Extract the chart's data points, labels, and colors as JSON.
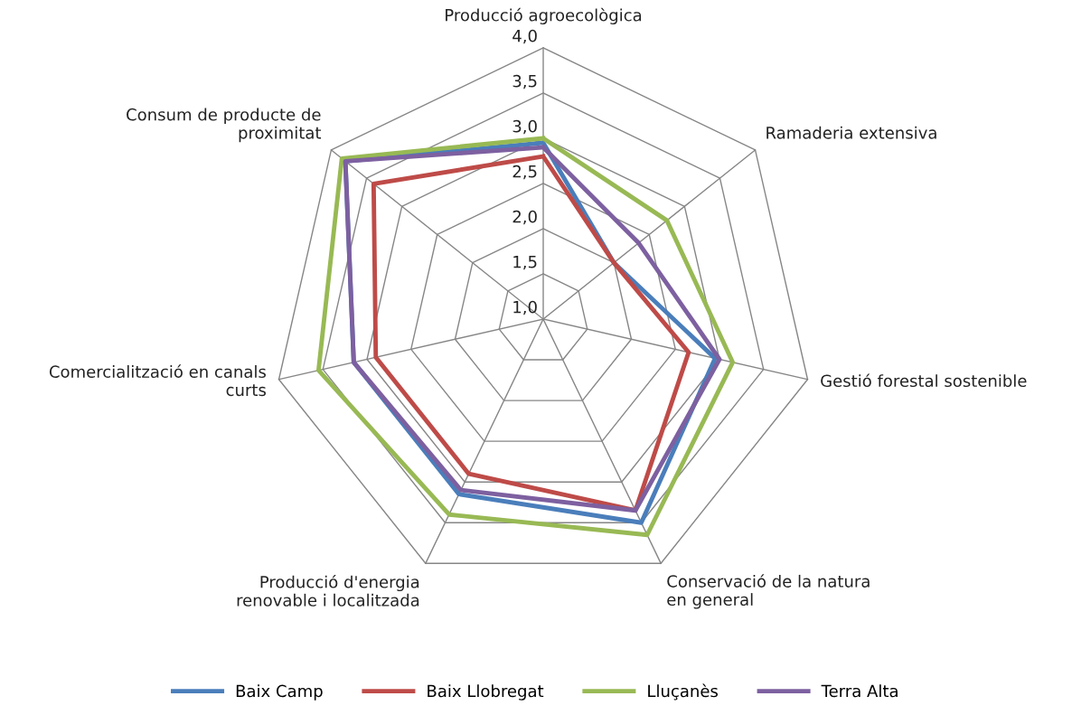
{
  "chart_data": {
    "type": "radar",
    "categories": [
      "Producció agroecològica",
      "Ramaderia extensiva",
      "Gestió forestal sostenible",
      "Conservació de la natura\nen general",
      "Producció d'energia\nrenovable i localitzada",
      "Comercialització en canals\ncurts",
      "Consum de producte de\nproximitat"
    ],
    "series": [
      {
        "name": "Baix Camp",
        "color": "#4a7ebb",
        "values": [
          2.95,
          2.0,
          2.95,
          3.5,
          3.15,
          3.15,
          3.8
        ]
      },
      {
        "name": "Baix Llobregat",
        "color": "#be4b48",
        "values": [
          2.8,
          2.0,
          2.65,
          3.35,
          2.9,
          2.9,
          3.4
        ]
      },
      {
        "name": "Lluçanès",
        "color": "#98b954",
        "values": [
          3.0,
          2.75,
          3.15,
          3.65,
          3.4,
          3.55,
          3.85
        ]
      },
      {
        "name": "Terra Alta",
        "color": "#7d60a0",
        "values": [
          2.9,
          2.35,
          3.0,
          3.35,
          3.1,
          3.15,
          3.8
        ]
      }
    ],
    "ylim": [
      1.0,
      4.0
    ],
    "yticks": [
      {
        "value": 1.0,
        "label": "1,0"
      },
      {
        "value": 1.5,
        "label": "1,5"
      },
      {
        "value": 2.0,
        "label": "2,0"
      },
      {
        "value": 2.5,
        "label": "2,5"
      },
      {
        "value": 3.0,
        "label": "3,0"
      },
      {
        "value": 3.5,
        "label": "3,5"
      },
      {
        "value": 4.0,
        "label": "4,0"
      }
    ],
    "grid": true,
    "legend": "bottom"
  }
}
